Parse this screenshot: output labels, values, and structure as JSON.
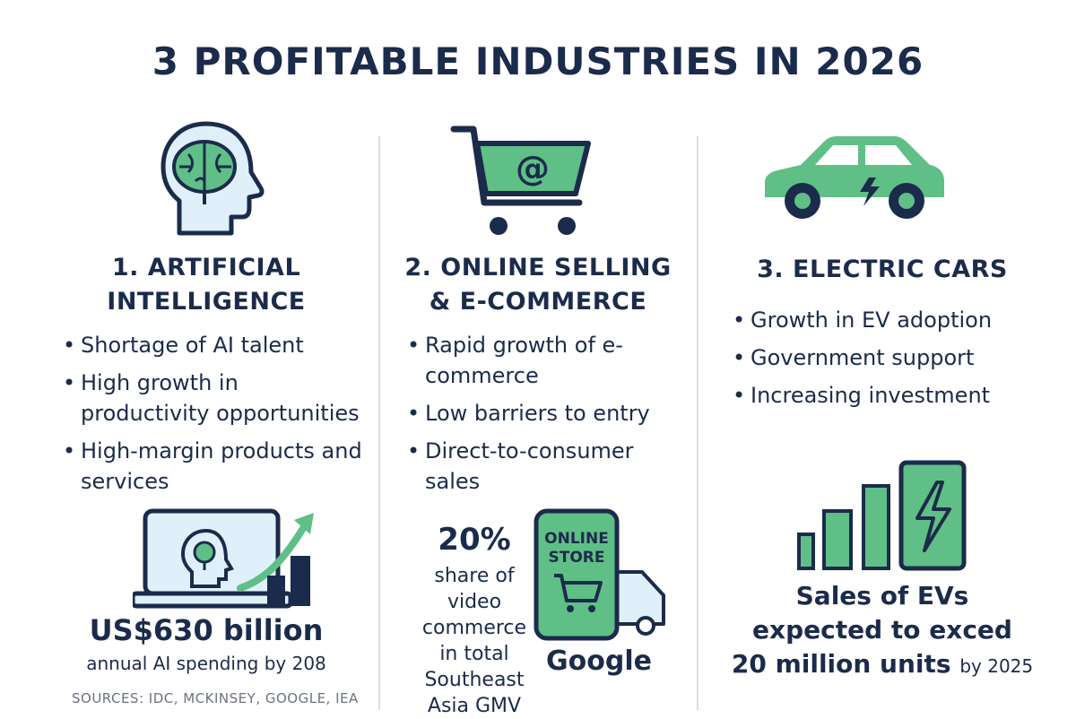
{
  "title": "3 PROFITABLE INDUSTRIES IN 2026",
  "colors": {
    "navy": "#1b2b4b",
    "green": "#5fbf86",
    "light_blue": "#dff0fb",
    "divider": "#d9dde3"
  },
  "industries": [
    {
      "heading_line1": "1. ARTIFICIAL",
      "heading_line2": "INTELLIGENCE",
      "icon": "brain-head-icon",
      "bullets": [
        "Shortage of AI talent",
        "High growth in productivity opportunities",
        "High-margin products and services"
      ],
      "stat_value": "US$630 billion",
      "stat_caption": "annual AI spending by 208",
      "stat_icon": "laptop-growth-icon"
    },
    {
      "heading_line1": "2. ONLINE SELLING",
      "heading_line2": "& E-COMMERCE",
      "icon": "shopping-cart-icon",
      "bullets": [
        "Rapid growth of e-commerce",
        "Low barriers to entry",
        "Direct-to-consumer sales"
      ],
      "stat_value": "20%",
      "stat_caption_lines": [
        "share of",
        "video",
        "commerce",
        "in total",
        "Southeast",
        "Asia GMV"
      ],
      "store_label_1": "ONLINE",
      "store_label_2": "STORE",
      "source_label": "Google",
      "stat_icon": "phone-store-truck-icon"
    },
    {
      "heading_line1": "3. ELECTRIC CARS",
      "icon": "electric-car-icon",
      "bullets": [
        "Growth in EV adoption",
        "Government support",
        "Increasing investment"
      ],
      "stat_line1": "Sales of EVs",
      "stat_line2": "expected to exced",
      "stat_line3_bold": "20 million units",
      "stat_line3_tail": "by 2025",
      "stat_icon": "ev-bars-battery-icon"
    }
  ],
  "sources": "SOURCES: IDC, MCKINSEY, GOOGLE, IEA"
}
